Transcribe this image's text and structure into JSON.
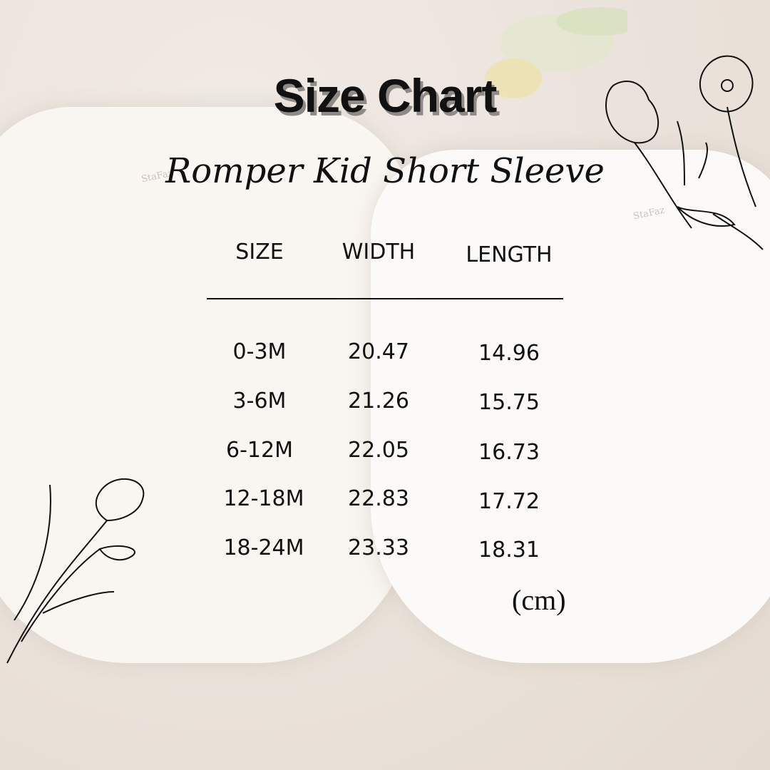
{
  "title": "Size Chart",
  "subtitle": "Romper Kid Short Sleeve",
  "watermark": "StaFaz",
  "table": {
    "headers": [
      "SIZE",
      "WIDTH",
      "LENGTH"
    ],
    "rows": [
      [
        "0-3M",
        "20.47",
        "14.96"
      ],
      [
        "3-6M",
        "21.26",
        "15.75"
      ],
      [
        "6-12M",
        "22.05",
        "16.73"
      ],
      [
        "12-18M",
        "22.83",
        "17.72"
      ],
      [
        "18-24M",
        "23.33",
        "18.31"
      ]
    ]
  },
  "unit": "(cm)",
  "colors": {
    "background": "#ebe3dc",
    "text": "#111111",
    "title_shadow": "#8f8a86"
  }
}
